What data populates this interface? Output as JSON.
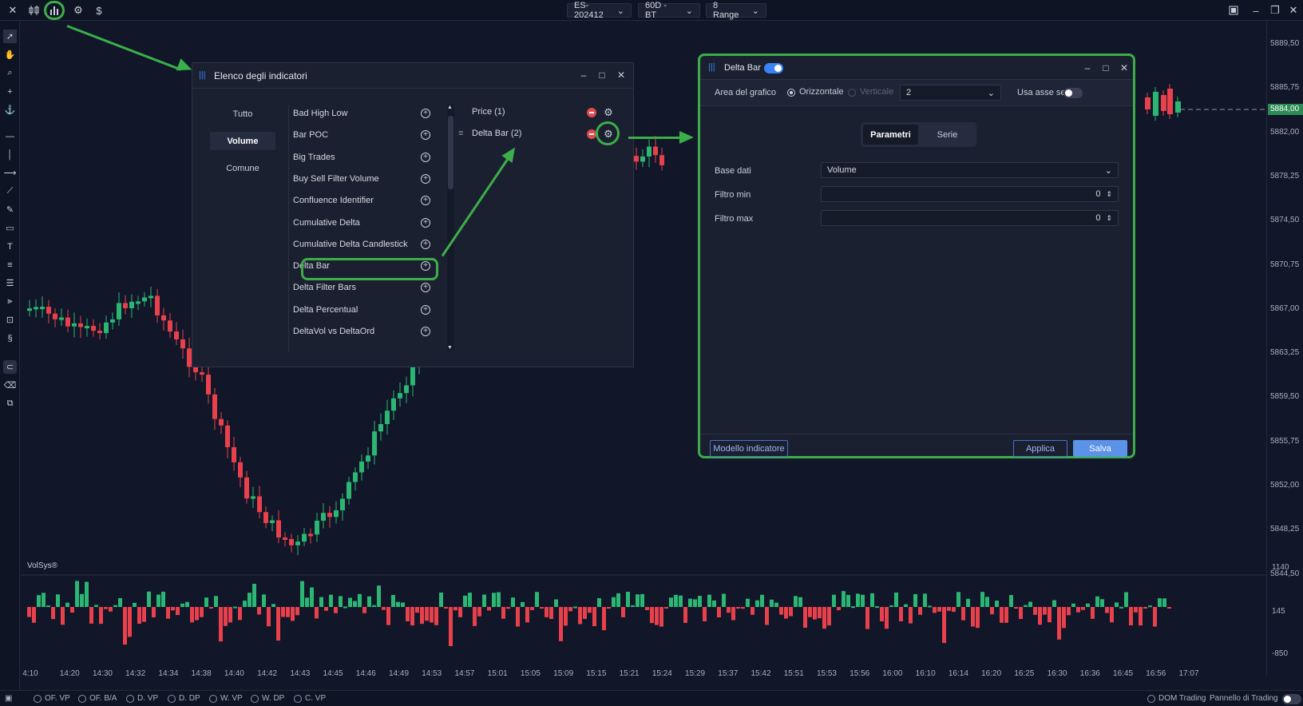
{
  "topbar": {
    "dropdowns": [
      {
        "label": "ES-202412"
      },
      {
        "label": "60D - BT"
      },
      {
        "label": "8 Range"
      }
    ],
    "currency_icon": "$"
  },
  "price_axis": {
    "ticks": [
      "5889,50",
      "5885,75",
      "5882,00",
      "5878,25",
      "5874,50",
      "5870,75",
      "5867,00",
      "5863,25",
      "5859,50",
      "5855,75",
      "5852,00",
      "5848,25",
      "5844,50"
    ],
    "current_price": "5884,00"
  },
  "sub_axis": {
    "ticks": [
      "1140",
      "145",
      "-850"
    ]
  },
  "time_axis": {
    "ticks": [
      "4:10",
      "14:20",
      "14:30",
      "14:32",
      "14:34",
      "14:38",
      "14:40",
      "14:42",
      "14:43",
      "14:45",
      "14:46",
      "14:49",
      "14:53",
      "14:57",
      "15:01",
      "15:05",
      "15:09",
      "15:15",
      "15:21",
      "15:24",
      "15:29",
      "15:37",
      "15:42",
      "15:51",
      "15:53",
      "15:56",
      "16:00",
      "16:10",
      "16:14",
      "16:20",
      "16:25",
      "16:30",
      "16:36",
      "16:45",
      "16:56",
      "17:07"
    ]
  },
  "watermark": "VolSys®",
  "bottombar": {
    "items": [
      "OF. VP",
      "OF. B/A",
      "D. VP",
      "D. DP",
      "W. VP",
      "W. DP",
      "C. VP"
    ],
    "dom_trading": "DOM Trading",
    "trading_panel": "Pannello di Trading"
  },
  "indicators_dialog": {
    "title": "Elenco degli indicatori",
    "categories": [
      "Tutto",
      "Volume",
      "Comune"
    ],
    "active_category": "Volume",
    "items": [
      "Bad High Low",
      "Bar POC",
      "Big Trades",
      "Buy Sell Filter Volume",
      "Confluence Identifier",
      "Cumulative Delta",
      "Cumulative Delta Candlestick",
      "Delta Bar",
      "Delta Filter Bars",
      "Delta Percentual",
      "DeltaVol vs DeltaOrd"
    ],
    "highlighted_item": "Delta Bar",
    "active": [
      "Price (1)",
      "Delta Bar (2)"
    ]
  },
  "settings_dialog": {
    "title": "Delta Bar",
    "enabled": true,
    "chart_area_label": "Area del grafico",
    "orientation_horizontal": "Orizzontale",
    "orientation_vertical": "Verticale",
    "orientation_selected": "Orizzontale",
    "area_value": "2",
    "secondary_axis_label": "Usa asse sec.",
    "secondary_axis_enabled": false,
    "tabs": [
      "Parametri",
      "Serie"
    ],
    "active_tab": "Parametri",
    "fields": {
      "base_dati": {
        "label": "Base dati",
        "value": "Volume"
      },
      "filtro_min": {
        "label": "Filtro min",
        "value": "0"
      },
      "filtro_max": {
        "label": "Filtro max",
        "value": "0"
      }
    },
    "template_button": "Modello indicatore",
    "apply_button": "Applica",
    "save_button": "Salva"
  },
  "colors": {
    "background": "#111628",
    "up_candle": "#2bb673",
    "down_candle": "#e8414c",
    "highlight": "#3cae49",
    "accent": "#3b82f6"
  }
}
